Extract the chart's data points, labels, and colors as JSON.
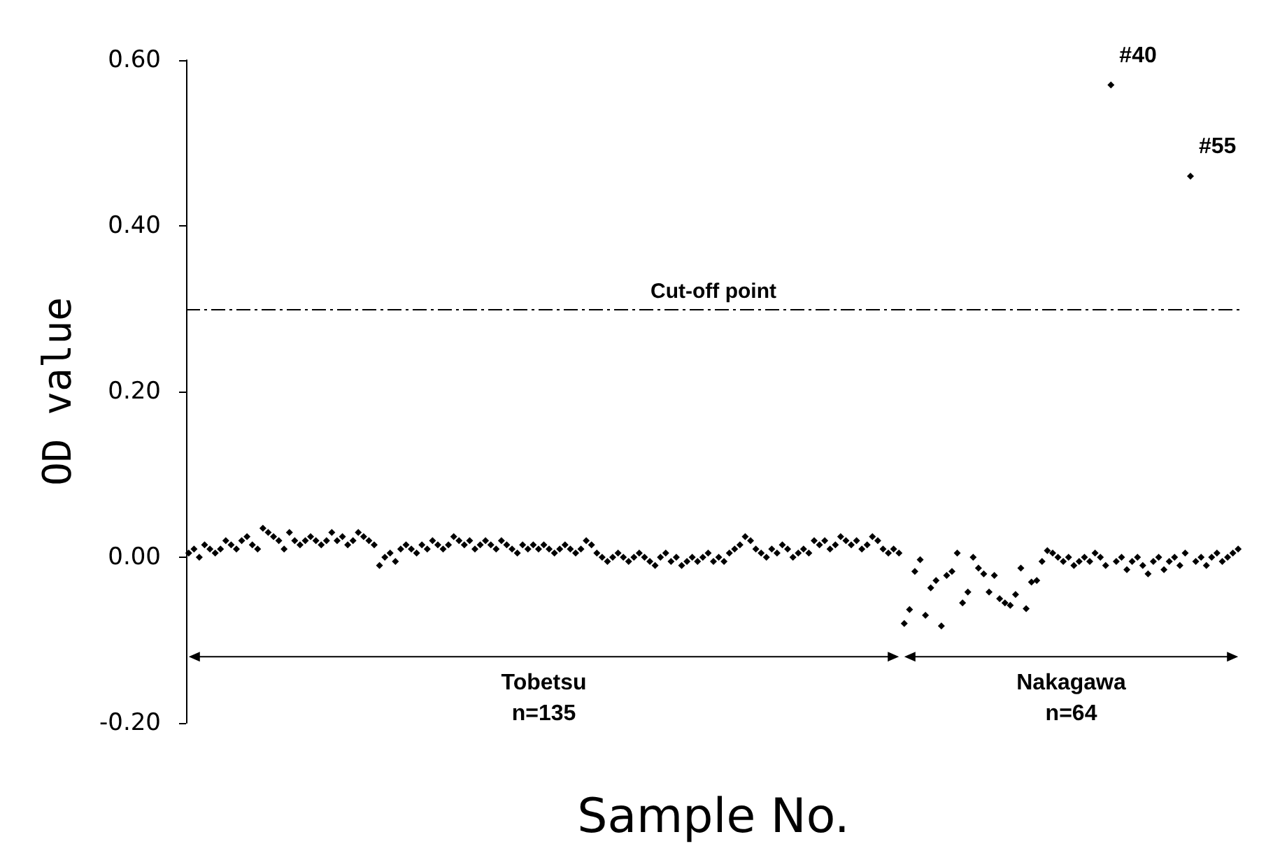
{
  "chart_data": {
    "type": "scatter",
    "xlabel": "Sample No.",
    "ylabel": "OD value",
    "categories": [
      null,
      null,
      null,
      null,
      null,
      null,
      null,
      null,
      null,
      null,
      null,
      null,
      null,
      null,
      null,
      null,
      null,
      null,
      null,
      null,
      null,
      null,
      null,
      null,
      null,
      null,
      null,
      null,
      null,
      null,
      null,
      null,
      null,
      null,
      null,
      null,
      null,
      null,
      null,
      null,
      null,
      null,
      null,
      null,
      null,
      null,
      null,
      null,
      null,
      null,
      null,
      null,
      null,
      null,
      null,
      null,
      null,
      null,
      null,
      null,
      null,
      null,
      null,
      null,
      null,
      null,
      null,
      null,
      null,
      null,
      null,
      null,
      null,
      null,
      null,
      null,
      null,
      null,
      null,
      null,
      null,
      null,
      null,
      null,
      null,
      null,
      null,
      null,
      null,
      null,
      null,
      null,
      null,
      null,
      null,
      null,
      null,
      null,
      null,
      null,
      null,
      null,
      null,
      null,
      null,
      null,
      null,
      null,
      null,
      null,
      null,
      null,
      null,
      null,
      null,
      null,
      null,
      null,
      null,
      null,
      null,
      null,
      null,
      null,
      null,
      null,
      null,
      null,
      null,
      null,
      null,
      null,
      null,
      null,
      null,
      null,
      null,
      null,
      null,
      null,
      null,
      null,
      null,
      null,
      null,
      null,
      null,
      null,
      null,
      null,
      null,
      null,
      null,
      null,
      null,
      null,
      null,
      null,
      null,
      null,
      null,
      null,
      null,
      null,
      null,
      null,
      null,
      null,
      null,
      null,
      null,
      null,
      null,
      null,
      null,
      null,
      null,
      null,
      null,
      null,
      null,
      null,
      null,
      null,
      null,
      null,
      null,
      null,
      null,
      null,
      null,
      null,
      null,
      null,
      null,
      null,
      null,
      null,
      null
    ],
    "values": [
      0.005,
      0.01,
      0.0,
      0.015,
      0.01,
      0.005,
      0.01,
      0.02,
      0.015,
      0.01,
      0.02,
      0.025,
      0.015,
      0.01,
      0.035,
      0.03,
      0.025,
      0.02,
      0.01,
      0.03,
      0.02,
      0.015,
      0.02,
      0.025,
      0.02,
      0.015,
      0.02,
      0.03,
      0.02,
      0.025,
      0.015,
      0.02,
      0.03,
      0.025,
      0.02,
      0.015,
      -0.01,
      0.0,
      0.005,
      -0.005,
      0.01,
      0.015,
      0.01,
      0.005,
      0.015,
      0.01,
      0.02,
      0.015,
      0.01,
      0.015,
      0.025,
      0.02,
      0.015,
      0.02,
      0.01,
      0.015,
      0.02,
      0.015,
      0.01,
      0.02,
      0.015,
      0.01,
      0.005,
      0.015,
      0.01,
      0.015,
      0.01,
      0.015,
      0.01,
      0.005,
      0.01,
      0.015,
      0.01,
      0.005,
      0.01,
      0.02,
      0.015,
      0.005,
      0.0,
      -0.005,
      0.0,
      0.005,
      0.0,
      -0.005,
      0.0,
      0.005,
      0.0,
      -0.005,
      -0.01,
      0.0,
      0.005,
      -0.005,
      0.0,
      -0.01,
      -0.005,
      0.0,
      -0.005,
      0.0,
      0.005,
      -0.005,
      0.0,
      -0.005,
      0.005,
      0.01,
      0.015,
      0.025,
      0.02,
      0.01,
      0.005,
      0.0,
      0.01,
      0.005,
      0.015,
      0.01,
      0.0,
      0.005,
      0.01,
      0.005,
      0.02,
      0.015,
      0.02,
      0.01,
      0.015,
      0.025,
      0.02,
      0.015,
      0.02,
      0.01,
      0.015,
      0.025,
      0.02,
      0.01,
      0.005,
      0.01,
      0.005,
      -0.08,
      -0.063,
      -0.017,
      -0.003,
      -0.07,
      -0.037,
      -0.028,
      -0.083,
      -0.022,
      -0.017,
      0.005,
      -0.055,
      -0.042,
      0.0,
      -0.013,
      -0.02,
      -0.042,
      -0.022,
      -0.05,
      -0.055,
      -0.058,
      -0.045,
      -0.013,
      -0.062,
      -0.03,
      -0.028,
      -0.005,
      0.008,
      0.005,
      0.0,
      -0.005,
      0.0,
      -0.01,
      -0.005,
      0.0,
      -0.005,
      0.005,
      0.0,
      -0.01,
      0.57,
      -0.005,
      0.0,
      -0.015,
      -0.005,
      0.0,
      -0.01,
      -0.02,
      -0.005,
      0.0,
      -0.015,
      -0.005,
      0.0,
      -0.01,
      0.005,
      0.46,
      -0.005,
      0.0,
      -0.01,
      0.0,
      0.005,
      -0.005,
      0.0,
      0.005,
      0.01
    ],
    "color": "#000000",
    "marker": "diamond",
    "ylim": [
      -0.2,
      0.6
    ],
    "yticks": [
      {
        "value": -0.2,
        "label": "-0.20"
      },
      {
        "value": 0,
        "label": "0.00"
      },
      {
        "value": 0.2,
        "label": "0.20"
      },
      {
        "value": 0.4,
        "label": "0.40"
      },
      {
        "value": 0.6,
        "label": "0.60"
      }
    ],
    "ref_lines": [
      {
        "axis": "y",
        "value": 0.3,
        "label": "Cut-off point",
        "line_style": "dashed"
      }
    ],
    "annotations": [
      "#40",
      "#55",
      "Tobetsu\nn=135",
      "Nakagawa\nn=64"
    ],
    "grid": false
  }
}
